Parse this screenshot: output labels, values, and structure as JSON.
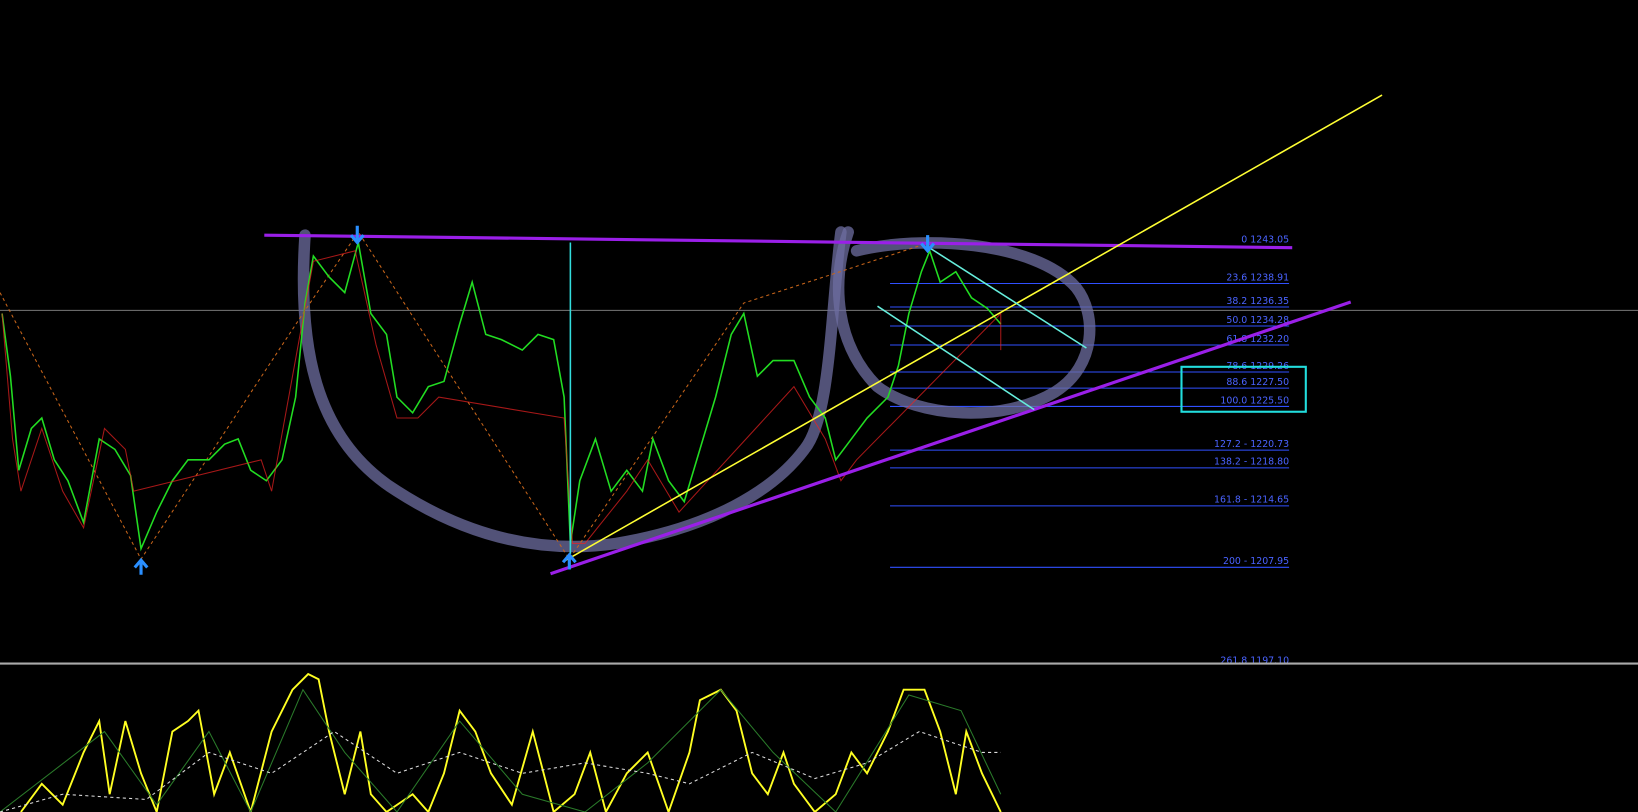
{
  "fib_levels": [
    {
      "value": 1243.05,
      "label": "0 1243.05"
    },
    {
      "value": 1238.91,
      "label": "23.6 1238.91"
    },
    {
      "value": 1236.35,
      "label": "38.2 1236.35"
    },
    {
      "value": 1234.28,
      "label": "50.0 1234.28"
    },
    {
      "value": 1232.2,
      "label": "61.8 1232.20"
    },
    {
      "value": 1229.26,
      "label": "78.6 1229.26"
    },
    {
      "value": 1227.5,
      "label": "88.6 1227.50"
    },
    {
      "value": 1225.5,
      "label": "100.0 1225.50"
    },
    {
      "value": 1220.73,
      "label": "127.2 - 1220.73"
    },
    {
      "value": 1218.8,
      "label": "138.2 - 1218.80"
    },
    {
      "value": 1214.65,
      "label": "161.8 -  1214.65"
    },
    {
      "value": 1207.95,
      "label": "200 - 1207.95"
    },
    {
      "value": 1197.1,
      "label": "261.8 1197.10"
    }
  ]
}
